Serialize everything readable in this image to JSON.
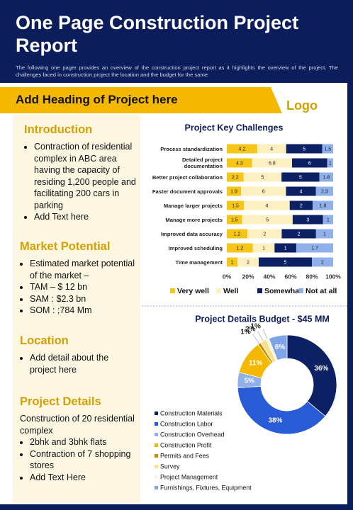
{
  "header": {
    "title": "One Page Construction Project Report",
    "description": "The following one pager provides an overview of the construction project report as it highlights the overview of the project. The challenges faced in construction project the location and the budget for the same"
  },
  "banner": {
    "heading": "Add Heading of Project here",
    "logo": "Logo"
  },
  "sections": [
    {
      "heading": "Introduction",
      "bullets": [
        "Contraction of residential complex in ABC area having the capacity of residing 1,200 people and facilitating 200 cars in parking",
        "Add Text here"
      ]
    },
    {
      "heading": "Market Potential",
      "bullets": [
        "Estimated market potential of the market –",
        "TAM – $ 12 bn",
        "SAM : $2.3 bn",
        "SOM : ;784 Mm"
      ]
    },
    {
      "heading": "Location",
      "bullets": [
        "Add detail about the project here"
      ]
    },
    {
      "heading": "Project Details",
      "text": "Construction of 20 residential complex",
      "bullets": [
        "2bhk and 3bhk flats",
        "Contraction of 7 shopping stores",
        "Add Text Here"
      ]
    }
  ],
  "chart_data": [
    {
      "type": "bar",
      "orientation": "horizontal",
      "stacked": true,
      "normalize": true,
      "title": "Project Key Challenges",
      "categories": [
        "Process standardization",
        "Detailed project documentation",
        "Better project collaboration",
        "Faster document approvals",
        "Manage larger projects",
        "Manage more projects",
        "Improved data accuracy",
        "Improved scheduling",
        "Time management"
      ],
      "series": [
        {
          "name": "Very well",
          "color": "#f5c518",
          "values": [
            4.2,
            4.3,
            2.2,
            1.9,
            1.5,
            1.5,
            1.2,
            1.2,
            1
          ]
        },
        {
          "name": "Well",
          "color": "#fdf0c0",
          "values": [
            4,
            6.8,
            5,
            6,
            4,
            5,
            2,
            1,
            2
          ]
        },
        {
          "name": "Somewhat",
          "color": "#0b2163",
          "values": [
            5,
            6,
            5,
            4,
            2,
            3,
            2,
            1,
            5
          ]
        },
        {
          "name": "Not at all",
          "color": "#8fb0e8",
          "values": [
            1.5,
            1,
            1.8,
            2.3,
            1.8,
            1,
            1,
            1.7,
            2
          ]
        }
      ],
      "xlim": [
        0,
        100
      ],
      "xticks": [
        {
          "value": 0,
          "label": "0%"
        },
        {
          "value": 20,
          "label": "20%"
        },
        {
          "value": 40,
          "label": "40%"
        },
        {
          "value": 60,
          "label": "60%"
        },
        {
          "value": 80,
          "label": "80%"
        },
        {
          "value": 100,
          "label": "100%"
        }
      ],
      "legend": "bottom"
    },
    {
      "type": "pie",
      "donut": true,
      "title": "Project Details  Budget - $45 MM",
      "categories": [
        "Construction Materials",
        "Construction Labor",
        "Construction Overhead",
        "Construction Profit",
        "Permits and Fees",
        "Survey",
        "Project Management",
        "Furnishings, Fixtures, Equipment"
      ],
      "values": [
        36,
        38,
        5,
        11,
        1,
        2,
        1,
        6
      ],
      "value_labels": [
        "36%",
        "38%",
        "5%",
        "11%",
        "1%",
        "2%",
        "1%",
        "6%"
      ],
      "colors": [
        "#0b2163",
        "#2a5bd7",
        "#8fb0e8",
        "#f5b800",
        "#c48f00",
        "#f7e08a",
        "#fdf3d6",
        "#7fa5e6"
      ],
      "legend": "bottom-left"
    }
  ]
}
